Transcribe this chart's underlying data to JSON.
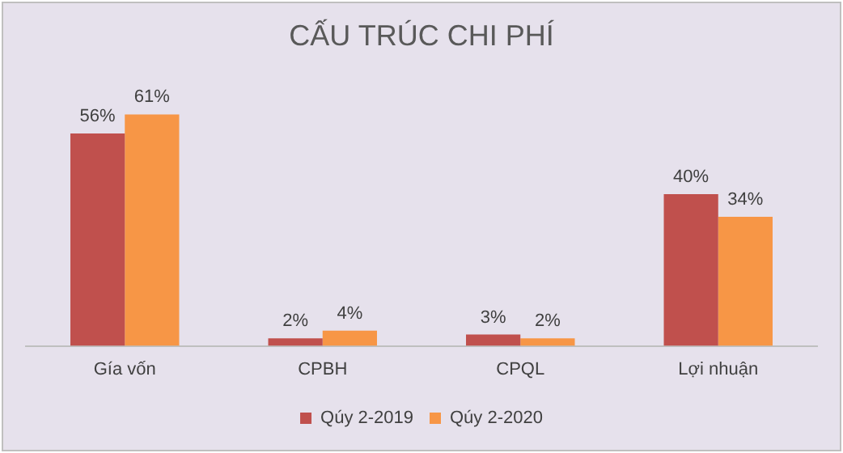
{
  "chart_data": {
    "type": "bar",
    "title": "CẤU TRÚC CHI PHÍ",
    "categories": [
      "Gía vốn",
      "CPBH",
      "CPQL",
      "Lợi nhuận"
    ],
    "series": [
      {
        "name": "Qúy 2-2019",
        "color": "#c0504d",
        "values": [
          56,
          2,
          3,
          40
        ],
        "value_labels": [
          "56%",
          "2%",
          "3%",
          "40%"
        ]
      },
      {
        "name": "Qúy 2-2020",
        "color": "#f79646",
        "values": [
          61,
          4,
          2,
          34
        ],
        "value_labels": [
          "61%",
          "4%",
          "2%",
          "34%"
        ]
      }
    ],
    "grid": false,
    "legend": "bottom"
  }
}
